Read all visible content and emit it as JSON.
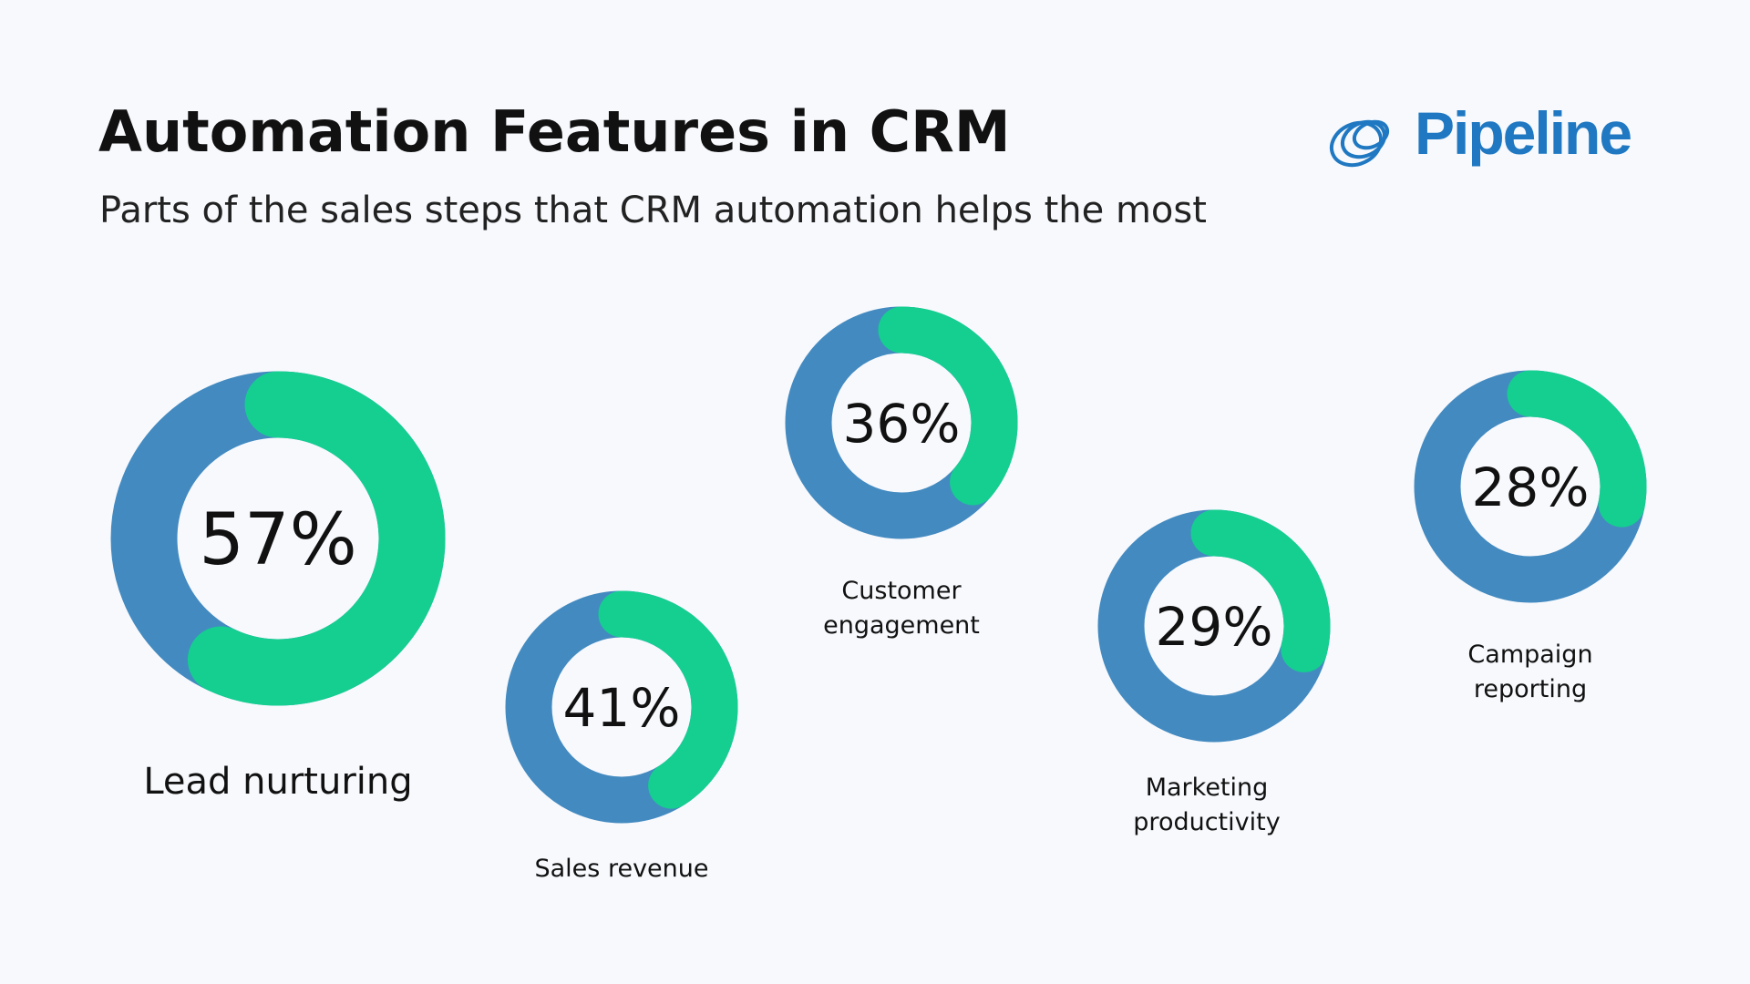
{
  "header": {
    "title": "Automation Features in CRM",
    "subtitle": "Parts of the sales steps that CRM automation helps the most",
    "logo": "Pipeline"
  },
  "chart_data": [
    {
      "type": "donut",
      "categories": [
        "Lead nurturing"
      ],
      "values": [
        57
      ],
      "value_labels": [
        "57%"
      ],
      "color": "#14cf8f",
      "track_color": "#438ac0"
    },
    {
      "type": "donut",
      "categories": [
        "Sales revenue"
      ],
      "values": [
        41
      ],
      "value_labels": [
        "41%"
      ],
      "color": "#14cf8f",
      "track_color": "#438ac0"
    },
    {
      "type": "donut",
      "categories": [
        "Customer engagement"
      ],
      "values": [
        36
      ],
      "value_labels": [
        "36%"
      ],
      "color": "#14cf8f",
      "track_color": "#438ac0"
    },
    {
      "type": "donut",
      "categories": [
        "Marketing productivity"
      ],
      "values": [
        29
      ],
      "value_labels": [
        "29%"
      ],
      "color": "#14cf8f",
      "track_color": "#438ac0"
    },
    {
      "type": "donut",
      "categories": [
        "Campaign reporting"
      ],
      "values": [
        28
      ],
      "value_labels": [
        "28%"
      ],
      "color": "#14cf8f",
      "track_color": "#438ac0"
    }
  ]
}
